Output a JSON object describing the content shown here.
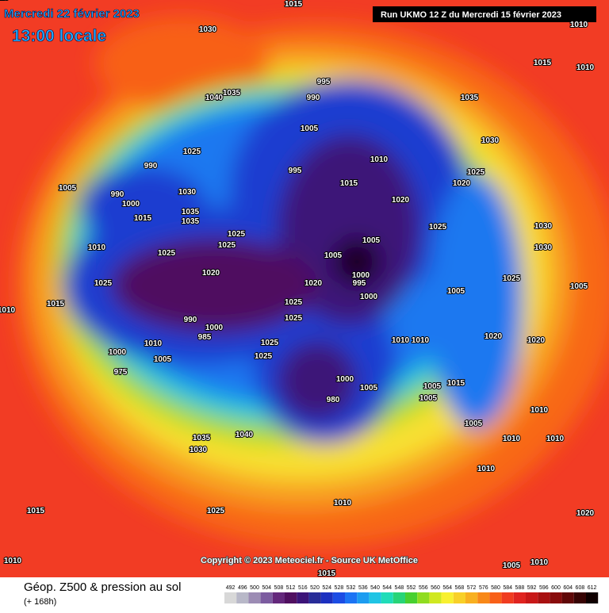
{
  "header": {
    "date": "Mercredi 22 février 2023",
    "time": "13:00 locale",
    "run": "Run UKMO 12 Z du Mercredi 15 février 2023"
  },
  "map": {
    "copyright": "Copyright © 2023 Meteociel.fr - Source UK MetOffice",
    "pressure_labels": [
      "1015",
      "1030",
      "1040",
      "1035",
      "1025",
      "990",
      "1005",
      "990",
      "1000",
      "1030",
      "1035",
      "1035",
      "1015",
      "1010",
      "1025",
      "1025",
      "1025",
      "1020",
      "1025",
      "1015",
      "990",
      "1000",
      "985",
      "1010",
      "1005",
      "1000",
      "975",
      "1035",
      "1030",
      "1040",
      "1025",
      "1015",
      "1010",
      "1015",
      "1005",
      "1010",
      "995",
      "990",
      "1005",
      "995",
      "1010",
      "1015",
      "1020",
      "1005",
      "1005",
      "1000",
      "995",
      "1000",
      "1020",
      "1025",
      "1025",
      "1025",
      "1025",
      "1010",
      "1010",
      "1000",
      "1005",
      "980",
      "1005",
      "1015",
      "1005",
      "1005",
      "1020",
      "1025",
      "1020",
      "1025",
      "1030",
      "1035",
      "1015",
      "1010",
      "1010",
      "1030",
      "1030",
      "1025",
      "1005",
      "1020",
      "1010",
      "1005",
      "1010",
      "1010",
      "1010",
      "1010",
      "1020",
      "1010",
      "1015"
    ]
  },
  "footer": {
    "title": "Géop. Z500 & pression au sol",
    "lead": "(+ 168h)",
    "scale": {
      "values": [
        492,
        496,
        500,
        504,
        508,
        512,
        516,
        520,
        524,
        528,
        532,
        536,
        540,
        544,
        548,
        552,
        556,
        560,
        564,
        568,
        572,
        576,
        580,
        584,
        588,
        592,
        596,
        600,
        604,
        608,
        612
      ],
      "colors": [
        "#d8d8d8",
        "#b8b8c8",
        "#9c8cb4",
        "#7c5ca0",
        "#64287c",
        "#501060",
        "#3c1478",
        "#282c98",
        "#1c30c0",
        "#1c4ce4",
        "#1c74f4",
        "#1c9cf0",
        "#20c4e4",
        "#20dcb8",
        "#28d478",
        "#48d030",
        "#90dc20",
        "#d0e820",
        "#f8f030",
        "#f8d028",
        "#f8b020",
        "#f88818",
        "#f86018",
        "#f03c20",
        "#e02420",
        "#c81818",
        "#a81010",
        "#880c0c",
        "#600808",
        "#380404",
        "#100000"
      ]
    }
  }
}
